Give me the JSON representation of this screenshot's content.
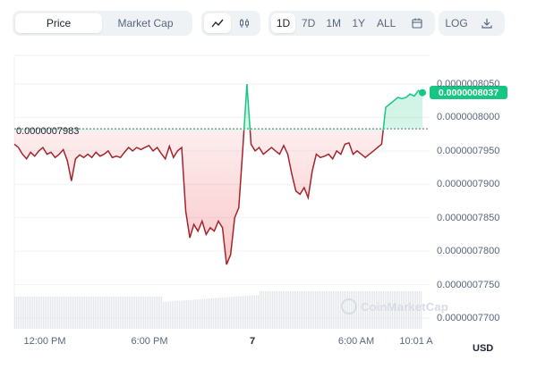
{
  "toolbar": {
    "view_tabs": [
      {
        "label": "Price",
        "active": true
      },
      {
        "label": "Market Cap",
        "active": false
      }
    ],
    "chart_type_icons": [
      "line-chart-icon",
      "candlestick-icon"
    ],
    "ranges": [
      {
        "label": "1D",
        "active": true
      },
      {
        "label": "7D",
        "active": false
      },
      {
        "label": "1M",
        "active": false
      },
      {
        "label": "1Y",
        "active": false
      },
      {
        "label": "ALL",
        "active": false
      }
    ],
    "calendar_icon": "calendar-icon",
    "log_label": "LOG",
    "download_icon": "download-icon"
  },
  "chart": {
    "reference_price_label": "0.0000007983",
    "current_price_label": "0.0000008037",
    "currency_label": "USD",
    "watermark": "CoinMarketCap",
    "colors": {
      "up": "#16c784",
      "down": "#a3242a",
      "grid": "#eff2f5"
    }
  },
  "chart_data": {
    "type": "line",
    "y_ticks": [
      "0.0000008050",
      "0.0000008000",
      "0.0000007950",
      "0.0000007900",
      "0.0000007850",
      "0.0000007800",
      "0.0000007750",
      "0.0000007700"
    ],
    "x_ticks": [
      {
        "label": "12:00 PM",
        "bold": false
      },
      {
        "label": "6:00 PM",
        "bold": false
      },
      {
        "label": "7",
        "bold": true
      },
      {
        "label": "6:00 AM",
        "bold": false
      },
      {
        "label": "10:01 A",
        "bold": false
      }
    ],
    "ylim": [
      7.7e-07,
      8.05e-07
    ],
    "reference_value": 7.983e-07,
    "current_value": 8.037e-07,
    "x": [
      0,
      1,
      2,
      3,
      4,
      5,
      6,
      7,
      8,
      9,
      10,
      11,
      12,
      13,
      14,
      15,
      16,
      17,
      18,
      19,
      20,
      21,
      22,
      23,
      24,
      25,
      26,
      27,
      28,
      29,
      30,
      31,
      32,
      33,
      34,
      35,
      36,
      37,
      38,
      39,
      40,
      41,
      42,
      43,
      44,
      45,
      46,
      47,
      48,
      49,
      50,
      51,
      52,
      53,
      54,
      55,
      56,
      57,
      58,
      59,
      60,
      61,
      62,
      63,
      64,
      65,
      66,
      67,
      68,
      69,
      70,
      71,
      72,
      73,
      74,
      75,
      76,
      77,
      78,
      79,
      80,
      81,
      82,
      83,
      84,
      85,
      86,
      87,
      88,
      89,
      90,
      91,
      92,
      93,
      94,
      95,
      96,
      97,
      98,
      99,
      100
    ],
    "values": [
      7.96e-07,
      7.955e-07,
      7.945e-07,
      7.938e-07,
      7.948e-07,
      7.942e-07,
      7.95e-07,
      7.955e-07,
      7.945e-07,
      7.948e-07,
      7.94e-07,
      7.945e-07,
      7.952e-07,
      7.935e-07,
      7.905e-07,
      7.938e-07,
      7.944e-07,
      7.94e-07,
      7.945e-07,
      7.94e-07,
      7.948e-07,
      7.942e-07,
      7.945e-07,
      7.95e-07,
      7.94e-07,
      7.942e-07,
      7.94e-07,
      7.948e-07,
      7.955e-07,
      7.95e-07,
      7.955e-07,
      7.952e-07,
      7.955e-07,
      7.958e-07,
      7.95e-07,
      7.955e-07,
      7.946e-07,
      7.938e-07,
      7.957e-07,
      7.94e-07,
      7.95e-07,
      7.955e-07,
      7.86e-07,
      7.82e-07,
      7.84e-07,
      7.83e-07,
      7.845e-07,
      7.825e-07,
      7.835e-07,
      7.83e-07,
      7.845e-07,
      7.835e-07,
      7.78e-07,
      7.795e-07,
      7.85e-07,
      7.865e-07,
      7.955e-07,
      8.05e-07,
      7.96e-07,
      7.95e-07,
      7.955e-07,
      7.945e-07,
      7.95e-07,
      7.955e-07,
      7.95e-07,
      7.945e-07,
      7.958e-07,
      7.945e-07,
      7.915e-07,
      7.89e-07,
      7.885e-07,
      7.895e-07,
      7.88e-07,
      7.92e-07,
      7.945e-07,
      7.94e-07,
      7.942e-07,
      7.945e-07,
      7.938e-07,
      7.95e-07,
      7.945e-07,
      7.96e-07,
      7.962e-07,
      7.945e-07,
      7.95e-07,
      7.945e-07,
      7.94e-07,
      7.945e-07,
      7.95e-07,
      7.955e-07,
      7.96e-07,
      8.015e-07,
      8.02e-07,
      8.025e-07,
      8.03e-07,
      8.028e-07,
      8.03e-07,
      8.035e-07,
      8.032e-07,
      8.04e-07,
      8.037e-07
    ]
  }
}
